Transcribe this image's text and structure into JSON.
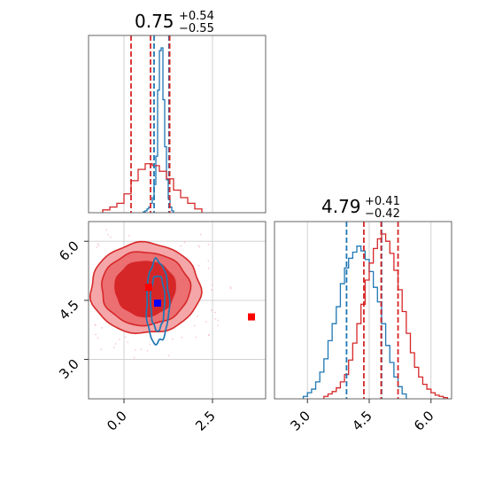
{
  "colors": {
    "blue": "#1f77b4",
    "red": "#d62728",
    "red_fill_light": "#f4a6a8",
    "red_fill_mid": "#ec6f72",
    "red_fill_dark": "#d62728",
    "grid": "#cccccc",
    "marker_red": "#ff0000",
    "marker_blue": "#0000ff"
  },
  "chart_data": [
    {
      "type": "histogram",
      "panel": "param1-marginal",
      "title": {
        "median": "0.75",
        "upper": "+0.54",
        "lower": "−0.55"
      },
      "xlim": [
        -1.0,
        4.0
      ],
      "grid": true,
      "quantile_lines": {
        "blue": [
          0.85,
          1.27
        ],
        "red": [
          0.2,
          0.75,
          1.29
        ]
      },
      "series": [
        {
          "color": "blue",
          "bin_edges": [
            0.55,
            0.6,
            0.65,
            0.7,
            0.75,
            0.8,
            0.85,
            0.9,
            0.95,
            1.0,
            1.05,
            1.1,
            1.15,
            1.2,
            1.25,
            1.3,
            1.35,
            1.4
          ],
          "counts": [
            1,
            2,
            4,
            6,
            10,
            16,
            30,
            60,
            130,
            172,
            175,
            120,
            70,
            35,
            15,
            6,
            2
          ]
        },
        {
          "color": "red",
          "bin_edges": [
            -0.6,
            -0.4,
            -0.2,
            0.0,
            0.2,
            0.4,
            0.6,
            0.8,
            1.0,
            1.2,
            1.4,
            1.6,
            1.8,
            2.0,
            2.2
          ],
          "counts": [
            3,
            6,
            10,
            20,
            34,
            46,
            52,
            50,
            44,
            36,
            24,
            16,
            10,
            4
          ]
        }
      ]
    },
    {
      "type": "histogram",
      "panel": "param2-marginal",
      "title": {
        "median": "4.79",
        "upper": "+0.41",
        "lower": "−0.42"
      },
      "xlim": [
        2.2,
        6.5
      ],
      "xticks": [
        "3.0",
        "4.5",
        "6.0"
      ],
      "grid": true,
      "quantile_lines": {
        "blue": [
          3.95,
          4.8
        ],
        "red": [
          4.37,
          4.79,
          5.2
        ]
      },
      "series": [
        {
          "color": "blue",
          "bin_edges": [
            2.9,
            3.0,
            3.1,
            3.2,
            3.3,
            3.4,
            3.5,
            3.6,
            3.7,
            3.8,
            3.9,
            4.0,
            4.1,
            4.2,
            4.3,
            4.4,
            4.5,
            4.6,
            4.7,
            4.8,
            4.9,
            5.0,
            5.1,
            5.2,
            5.3,
            5.4
          ],
          "counts": [
            2,
            5,
            8,
            14,
            22,
            33,
            48,
            62,
            76,
            95,
            108,
            116,
            121,
            126,
            122,
            115,
            105,
            92,
            80,
            62,
            44,
            30,
            18,
            10,
            4
          ]
        },
        {
          "color": "red",
          "bin_edges": [
            3.4,
            3.5,
            3.6,
            3.7,
            3.8,
            3.9,
            4.0,
            4.1,
            4.2,
            4.3,
            4.4,
            4.5,
            4.6,
            4.7,
            4.8,
            4.9,
            5.0,
            5.1,
            5.2,
            5.3,
            5.4,
            5.5,
            5.6,
            5.7,
            5.8,
            5.9,
            6.0,
            6.1,
            6.2,
            6.3,
            6.4
          ],
          "counts": [
            2,
            4,
            6,
            9,
            14,
            20,
            32,
            46,
            62,
            78,
            98,
            112,
            124,
            132,
            136,
            130,
            120,
            106,
            90,
            72,
            54,
            38,
            26,
            18,
            12,
            8,
            5,
            3,
            2,
            1
          ]
        }
      ]
    },
    {
      "type": "contour",
      "panel": "param1-vs-param2",
      "xlim": [
        -1.0,
        4.0
      ],
      "ylim": [
        2.0,
        6.5
      ],
      "xticks": [
        "0.0",
        "2.5"
      ],
      "yticks": [
        "3.0",
        "4.5",
        "6.0"
      ],
      "grid": true,
      "series": [
        {
          "color": "red",
          "center": [
            0.6,
            4.8
          ],
          "levels": [
            {
              "rx": 1.55,
              "ry": 1.15
            },
            {
              "rx": 1.25,
              "ry": 0.93
            },
            {
              "rx": 0.85,
              "ry": 0.7
            }
          ]
        },
        {
          "color": "blue",
          "center": [
            0.95,
            4.45
          ],
          "levels": [
            {
              "rx": 0.32,
              "ry": 1.05
            },
            {
              "rx": 0.2,
              "ry": 0.7
            }
          ]
        }
      ],
      "markers": [
        {
          "color": "red",
          "x": 0.7,
          "y": 4.83
        },
        {
          "color": "blue",
          "x": 0.95,
          "y": 4.43
        },
        {
          "color": "red",
          "x": 4.8,
          "y": 4.08
        }
      ]
    }
  ]
}
